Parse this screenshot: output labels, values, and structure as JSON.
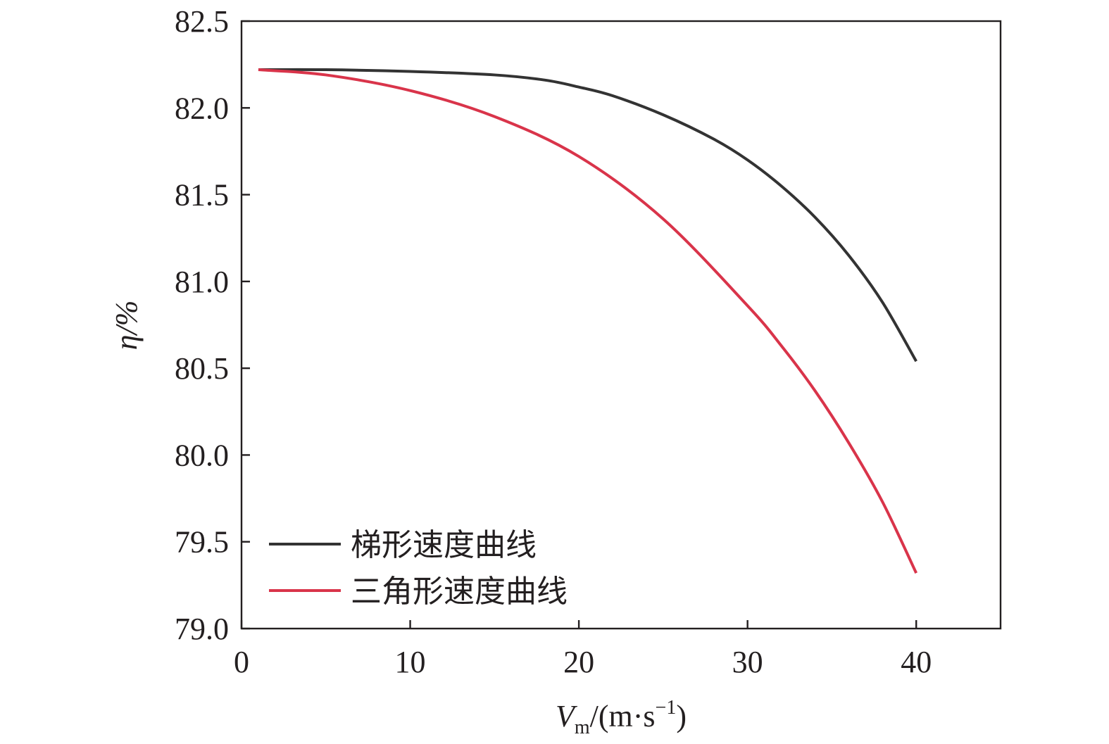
{
  "chart_data": {
    "type": "line",
    "title": "",
    "xlabel": {
      "main": "V",
      "sub": "m",
      "unit_open": "/(m·s",
      "unit_exp": "−1",
      "unit_close": ")"
    },
    "ylabel": {
      "symbol": "η",
      "unit": "/%"
    },
    "xlim": [
      0,
      45
    ],
    "ylim": [
      79.0,
      82.5
    ],
    "xticks": [
      0,
      10,
      20,
      30,
      40
    ],
    "xtick_labels": [
      "0",
      "10",
      "20",
      "30",
      "40"
    ],
    "yticks": [
      79.0,
      79.5,
      80.0,
      80.5,
      81.0,
      81.5,
      82.0,
      82.5
    ],
    "ytick_labels": [
      "79.0",
      "79.5",
      "80.0",
      "80.5",
      "81.0",
      "81.5",
      "82.0",
      "82.5"
    ],
    "grid": false,
    "legend_position": "lower-left",
    "series": [
      {
        "name": "梯形速度曲线",
        "color": "#333333",
        "x": [
          1,
          5,
          10,
          15,
          18,
          20,
          22,
          25,
          28,
          30,
          32,
          34,
          36,
          38,
          40
        ],
        "y": [
          82.22,
          82.22,
          82.21,
          82.19,
          82.16,
          82.12,
          82.07,
          81.96,
          81.82,
          81.7,
          81.55,
          81.37,
          81.15,
          80.88,
          80.54
        ]
      },
      {
        "name": "三角形速度曲线",
        "color": "#d9344a",
        "x": [
          1,
          5,
          10,
          15,
          20,
          25,
          30,
          32,
          34,
          36,
          38,
          40
        ],
        "y": [
          82.22,
          82.19,
          82.1,
          81.95,
          81.72,
          81.36,
          80.86,
          80.63,
          80.37,
          80.07,
          79.73,
          79.32
        ]
      }
    ]
  }
}
